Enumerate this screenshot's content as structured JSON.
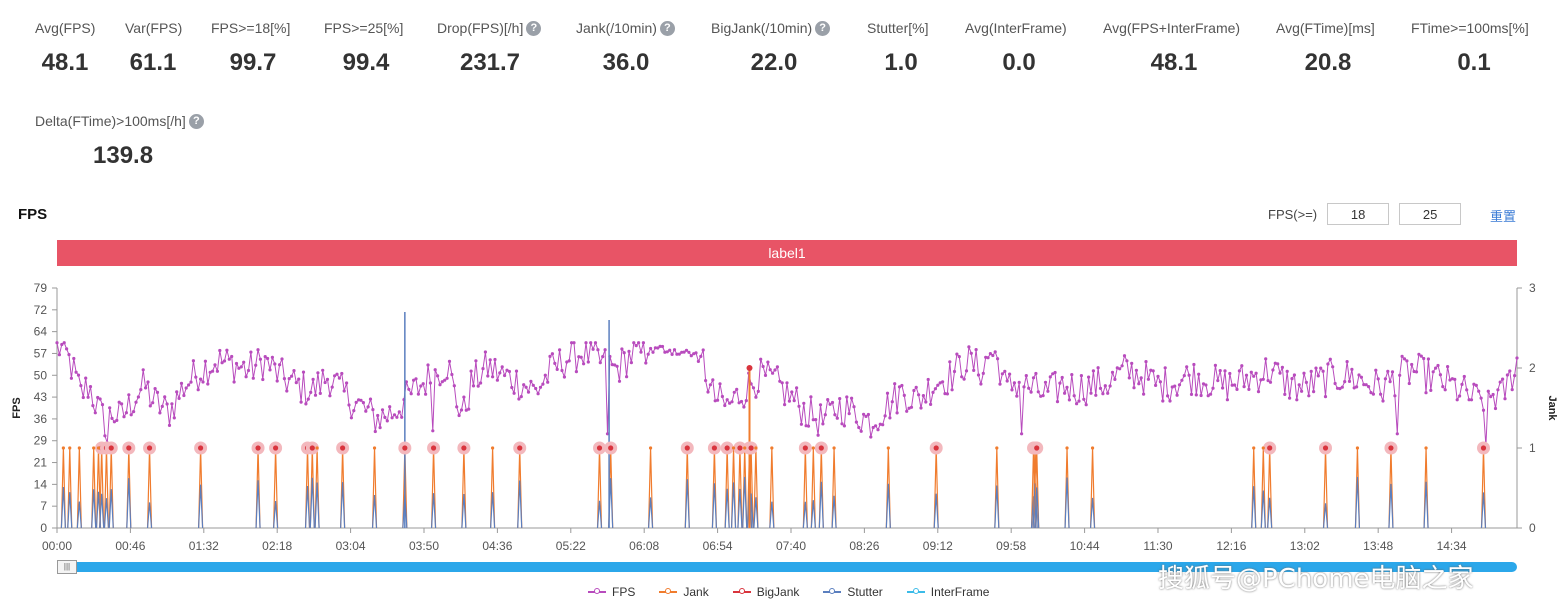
{
  "stats": [
    {
      "label": "Avg(FPS)",
      "value": "48.1",
      "help": false
    },
    {
      "label": "Var(FPS)",
      "value": "61.1",
      "help": false
    },
    {
      "label": "FPS>=18[%]",
      "value": "99.7",
      "help": false
    },
    {
      "label": "FPS>=25[%]",
      "value": "99.4",
      "help": false
    },
    {
      "label": "Drop(FPS)[/h]",
      "value": "231.7",
      "help": true
    },
    {
      "label": "Jank(/10min)",
      "value": "36.0",
      "help": true
    },
    {
      "label": "BigJank(/10min)",
      "value": "22.0",
      "help": true
    },
    {
      "label": "Stutter[%]",
      "value": "1.0",
      "help": false
    },
    {
      "label": "Avg(InterFrame)",
      "value": "0.0",
      "help": false
    },
    {
      "label": "Avg(FPS+InterFrame)",
      "value": "48.1",
      "help": false
    },
    {
      "label": "Avg(FTime)[ms]",
      "value": "20.8",
      "help": false
    },
    {
      "label": "FTime>=100ms[%]",
      "value": "0.1",
      "help": false
    },
    {
      "label": "Delta(FTime)>100ms[/h]",
      "value": "139.8",
      "help": true
    }
  ],
  "help_glyph": "?",
  "section_title": "FPS",
  "threshold": {
    "label": "FPS(>=)",
    "value1": "18",
    "value2": "25"
  },
  "reset_label": "重置",
  "label_bar": "label1",
  "slider_handle_glyph": "|||",
  "watermark": "搜狐号@PChome电脑之家",
  "colors": {
    "fps": "#b84bbd",
    "jank": "#f07c2e",
    "bigjank": "#d9343d",
    "stutter": "#5b7fbf",
    "interframe": "#3bbbe8",
    "label": "#e85466",
    "slider": "#2ba7ea"
  },
  "chart_data": {
    "type": "line",
    "ylabel_left": "FPS",
    "ylabel_right": "Jank",
    "y_left_ticks": [
      "0",
      "7",
      "14",
      "21",
      "29",
      "36",
      "43",
      "50",
      "57",
      "64",
      "72",
      "79"
    ],
    "y_left_range": [
      0,
      79
    ],
    "y_right_ticks": [
      "0",
      "1",
      "2",
      "3"
    ],
    "y_right_range": [
      0,
      3
    ],
    "x_tick_labels": [
      "00:00",
      "00:46",
      "01:32",
      "02:18",
      "03:04",
      "03:50",
      "04:36",
      "05:22",
      "06:08",
      "06:54",
      "07:40",
      "08:26",
      "09:12",
      "09:58",
      "10:44",
      "11:30",
      "12:16",
      "13:02",
      "13:48",
      "14:34"
    ],
    "x_range_seconds": [
      0,
      915
    ],
    "legend": [
      {
        "name": "FPS",
        "color": "#b84bbd"
      },
      {
        "name": "Jank",
        "color": "#f07c2e"
      },
      {
        "name": "BigJank",
        "color": "#d9343d"
      },
      {
        "name": "Stutter",
        "color": "#5b7fbf"
      },
      {
        "name": "InterFrame",
        "color": "#3bbbe8"
      }
    ],
    "fps_keypoints": [
      [
        0,
        60
      ],
      [
        5,
        58
      ],
      [
        10,
        52
      ],
      [
        15,
        44
      ],
      [
        20,
        47
      ],
      [
        25,
        40
      ],
      [
        30,
        35
      ],
      [
        35,
        38
      ],
      [
        40,
        36
      ],
      [
        45,
        40
      ],
      [
        50,
        44
      ],
      [
        55,
        47
      ],
      [
        60,
        42
      ],
      [
        70,
        38
      ],
      [
        80,
        47
      ],
      [
        90,
        52
      ],
      [
        100,
        55
      ],
      [
        110,
        54
      ],
      [
        120,
        52
      ],
      [
        130,
        55
      ],
      [
        140,
        50
      ],
      [
        150,
        47
      ],
      [
        160,
        45
      ],
      [
        170,
        50
      ],
      [
        180,
        44
      ],
      [
        190,
        40
      ],
      [
        200,
        36
      ],
      [
        210,
        38
      ],
      [
        220,
        43
      ],
      [
        230,
        48
      ],
      [
        240,
        52
      ],
      [
        245,
        54
      ],
      [
        250,
        42
      ],
      [
        255,
        38
      ],
      [
        260,
        48
      ],
      [
        270,
        53
      ],
      [
        280,
        50
      ],
      [
        290,
        48
      ],
      [
        300,
        45
      ],
      [
        310,
        52
      ],
      [
        320,
        56
      ],
      [
        330,
        58
      ],
      [
        340,
        55
      ],
      [
        350,
        52
      ],
      [
        360,
        57
      ],
      [
        370,
        58
      ],
      [
        380,
        59
      ],
      [
        390,
        58
      ],
      [
        400,
        57
      ],
      [
        405,
        55
      ],
      [
        410,
        44
      ],
      [
        420,
        40
      ],
      [
        430,
        45
      ],
      [
        440,
        50
      ],
      [
        450,
        48
      ],
      [
        460,
        43
      ],
      [
        470,
        38
      ],
      [
        480,
        35
      ],
      [
        490,
        40
      ],
      [
        500,
        38
      ],
      [
        510,
        35
      ],
      [
        520,
        40
      ],
      [
        530,
        45
      ],
      [
        540,
        42
      ],
      [
        550,
        48
      ],
      [
        560,
        50
      ],
      [
        570,
        55
      ],
      [
        580,
        52
      ],
      [
        585,
        58
      ],
      [
        590,
        55
      ],
      [
        595,
        45
      ],
      [
        600,
        48
      ],
      [
        610,
        46
      ],
      [
        620,
        44
      ],
      [
        630,
        47
      ],
      [
        640,
        46
      ],
      [
        650,
        47
      ],
      [
        660,
        48
      ],
      [
        670,
        52
      ],
      [
        680,
        50
      ],
      [
        690,
        47
      ],
      [
        700,
        48
      ],
      [
        710,
        50
      ],
      [
        720,
        49
      ],
      [
        730,
        47
      ],
      [
        740,
        48
      ],
      [
        750,
        50
      ],
      [
        760,
        52
      ],
      [
        770,
        48
      ],
      [
        780,
        46
      ],
      [
        790,
        48
      ],
      [
        800,
        50
      ],
      [
        810,
        50
      ],
      [
        820,
        48
      ],
      [
        830,
        46
      ],
      [
        840,
        50
      ],
      [
        850,
        52
      ],
      [
        860,
        50
      ],
      [
        870,
        48
      ],
      [
        880,
        45
      ],
      [
        890,
        42
      ],
      [
        900,
        44
      ],
      [
        905,
        43
      ],
      [
        910,
        48
      ],
      [
        915,
        55
      ]
    ],
    "fps_dips": [
      [
        28,
        30
      ],
      [
        32,
        28
      ],
      [
        236,
        32
      ],
      [
        238,
        30
      ],
      [
        325,
        32
      ],
      [
        345,
        31
      ],
      [
        520,
        36
      ],
      [
        535,
        37
      ],
      [
        598,
        34
      ],
      [
        605,
        31
      ],
      [
        840,
        31
      ],
      [
        880,
        32
      ],
      [
        892,
        28
      ],
      [
        896,
        27
      ]
    ],
    "jank_events": [
      4,
      8,
      14,
      23,
      26,
      28,
      31,
      34,
      45,
      58,
      90,
      126,
      137,
      157,
      160,
      163,
      179,
      199,
      218,
      236,
      255,
      273,
      290,
      340,
      347,
      372,
      395,
      412,
      420,
      424,
      428,
      431,
      434,
      435,
      438,
      448,
      469,
      474,
      479,
      487,
      521,
      551,
      589,
      612,
      613,
      614,
      633,
      649,
      750,
      756,
      760,
      795,
      815,
      836,
      858,
      894
    ],
    "bigjank_events": [
      28,
      31,
      34,
      45,
      58,
      90,
      126,
      137,
      157,
      160,
      179,
      218,
      236,
      255,
      290,
      340,
      347,
      395,
      412,
      420,
      428,
      434,
      435,
      469,
      479,
      551,
      612,
      613,
      614,
      760,
      795,
      836,
      894
    ],
    "stutter_spikes": [
      [
        218,
        2.7
      ],
      [
        346,
        2.6
      ]
    ],
    "bigjank_tall": [
      [
        434,
        2.0
      ]
    ]
  }
}
